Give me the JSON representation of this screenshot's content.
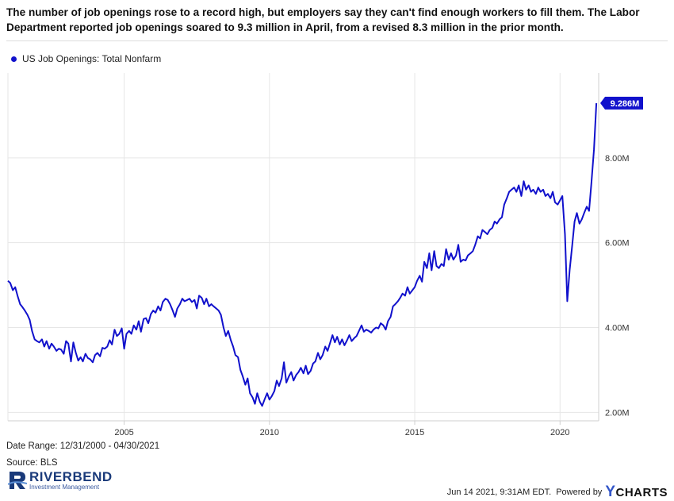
{
  "headline": "The number of job openings rose to a record high, but employers say they can't find enough workers to fill them.  The Labor Department reported job openings soared to 9.3 million in April, from a revised 8.3 million in the prior month.",
  "footer": {
    "date_range": "Date Range: 12/31/2000 - 04/30/2021",
    "source": "Source: BLS",
    "timestamp": "Jun 14 2021, 9:31AM EDT.",
    "powered_by": "Powered by",
    "ycharts_y": "Y",
    "ycharts_rest": "CHARTS",
    "logo_name": "RIVERBEND",
    "logo_sub": "Investment Management"
  },
  "colors": {
    "line": "#1111cc",
    "grid": "#e6e6e6",
    "label_bg": "#1111cc"
  },
  "chart_data": {
    "type": "line",
    "title": "",
    "xlabel": "",
    "ylabel": "",
    "series": [
      {
        "name": "US Job Openings: Total Nonfarm"
      }
    ],
    "last_value_label": "9.286M",
    "x_ticks": [
      "2005",
      "2010",
      "2015",
      "2020"
    ],
    "x_tick_values": [
      2005,
      2010,
      2015,
      2020
    ],
    "y_ticks": [
      "2.00M",
      "4.00M",
      "6.00M",
      "8.00M"
    ],
    "y_tick_values": [
      2,
      4,
      6,
      8
    ],
    "xlim": [
      2001.0,
      2021.33
    ],
    "ylim": [
      1.8,
      10.0
    ],
    "y_unit": "millions",
    "axis_side": "right",
    "grid": true,
    "points": [
      [
        2001.0,
        5.1
      ],
      [
        2001.08,
        5.05
      ],
      [
        2001.17,
        4.88
      ],
      [
        2001.25,
        4.95
      ],
      [
        2001.33,
        4.75
      ],
      [
        2001.42,
        4.55
      ],
      [
        2001.5,
        4.48
      ],
      [
        2001.58,
        4.4
      ],
      [
        2001.67,
        4.3
      ],
      [
        2001.75,
        4.18
      ],
      [
        2001.83,
        3.92
      ],
      [
        2001.92,
        3.72
      ],
      [
        2002.0,
        3.68
      ],
      [
        2002.08,
        3.65
      ],
      [
        2002.17,
        3.72
      ],
      [
        2002.25,
        3.55
      ],
      [
        2002.33,
        3.68
      ],
      [
        2002.42,
        3.5
      ],
      [
        2002.5,
        3.62
      ],
      [
        2002.58,
        3.55
      ],
      [
        2002.67,
        3.45
      ],
      [
        2002.75,
        3.5
      ],
      [
        2002.83,
        3.48
      ],
      [
        2002.92,
        3.38
      ],
      [
        2003.0,
        3.68
      ],
      [
        2003.08,
        3.62
      ],
      [
        2003.17,
        3.2
      ],
      [
        2003.25,
        3.65
      ],
      [
        2003.33,
        3.42
      ],
      [
        2003.42,
        3.22
      ],
      [
        2003.5,
        3.3
      ],
      [
        2003.58,
        3.2
      ],
      [
        2003.67,
        3.38
      ],
      [
        2003.75,
        3.28
      ],
      [
        2003.83,
        3.25
      ],
      [
        2003.92,
        3.18
      ],
      [
        2004.0,
        3.35
      ],
      [
        2004.08,
        3.4
      ],
      [
        2004.17,
        3.32
      ],
      [
        2004.25,
        3.52
      ],
      [
        2004.33,
        3.5
      ],
      [
        2004.42,
        3.55
      ],
      [
        2004.5,
        3.7
      ],
      [
        2004.58,
        3.6
      ],
      [
        2004.67,
        3.95
      ],
      [
        2004.75,
        3.8
      ],
      [
        2004.83,
        3.85
      ],
      [
        2004.92,
        3.98
      ],
      [
        2005.0,
        3.5
      ],
      [
        2005.08,
        3.85
      ],
      [
        2005.17,
        3.92
      ],
      [
        2005.25,
        3.85
      ],
      [
        2005.33,
        4.05
      ],
      [
        2005.42,
        3.95
      ],
      [
        2005.5,
        4.15
      ],
      [
        2005.58,
        3.9
      ],
      [
        2005.67,
        4.2
      ],
      [
        2005.75,
        4.22
      ],
      [
        2005.83,
        4.1
      ],
      [
        2005.92,
        4.32
      ],
      [
        2006.0,
        4.4
      ],
      [
        2006.08,
        4.35
      ],
      [
        2006.17,
        4.5
      ],
      [
        2006.25,
        4.4
      ],
      [
        2006.33,
        4.6
      ],
      [
        2006.42,
        4.68
      ],
      [
        2006.5,
        4.65
      ],
      [
        2006.58,
        4.55
      ],
      [
        2006.67,
        4.4
      ],
      [
        2006.75,
        4.25
      ],
      [
        2006.83,
        4.45
      ],
      [
        2006.92,
        4.55
      ],
      [
        2007.0,
        4.68
      ],
      [
        2007.08,
        4.62
      ],
      [
        2007.17,
        4.65
      ],
      [
        2007.25,
        4.68
      ],
      [
        2007.33,
        4.6
      ],
      [
        2007.42,
        4.65
      ],
      [
        2007.5,
        4.45
      ],
      [
        2007.58,
        4.75
      ],
      [
        2007.67,
        4.7
      ],
      [
        2007.75,
        4.55
      ],
      [
        2007.83,
        4.68
      ],
      [
        2007.92,
        4.5
      ],
      [
        2008.0,
        4.55
      ],
      [
        2008.08,
        4.5
      ],
      [
        2008.17,
        4.45
      ],
      [
        2008.25,
        4.4
      ],
      [
        2008.33,
        4.3
      ],
      [
        2008.42,
        4.0
      ],
      [
        2008.5,
        3.8
      ],
      [
        2008.58,
        3.92
      ],
      [
        2008.67,
        3.7
      ],
      [
        2008.75,
        3.55
      ],
      [
        2008.83,
        3.35
      ],
      [
        2008.92,
        3.3
      ],
      [
        2009.0,
        3.0
      ],
      [
        2009.08,
        2.85
      ],
      [
        2009.17,
        2.65
      ],
      [
        2009.25,
        2.8
      ],
      [
        2009.33,
        2.45
      ],
      [
        2009.42,
        2.35
      ],
      [
        2009.5,
        2.2
      ],
      [
        2009.58,
        2.45
      ],
      [
        2009.67,
        2.25
      ],
      [
        2009.75,
        2.15
      ],
      [
        2009.83,
        2.3
      ],
      [
        2009.92,
        2.45
      ],
      [
        2010.0,
        2.3
      ],
      [
        2010.08,
        2.38
      ],
      [
        2010.17,
        2.5
      ],
      [
        2010.25,
        2.75
      ],
      [
        2010.33,
        2.62
      ],
      [
        2010.42,
        2.8
      ],
      [
        2010.5,
        3.18
      ],
      [
        2010.58,
        2.7
      ],
      [
        2010.67,
        2.85
      ],
      [
        2010.75,
        2.95
      ],
      [
        2010.83,
        2.75
      ],
      [
        2010.92,
        2.88
      ],
      [
        2011.0,
        2.95
      ],
      [
        2011.08,
        3.05
      ],
      [
        2011.17,
        2.92
      ],
      [
        2011.25,
        3.1
      ],
      [
        2011.33,
        2.9
      ],
      [
        2011.42,
        2.98
      ],
      [
        2011.5,
        3.15
      ],
      [
        2011.58,
        3.2
      ],
      [
        2011.67,
        3.4
      ],
      [
        2011.75,
        3.25
      ],
      [
        2011.83,
        3.35
      ],
      [
        2011.92,
        3.55
      ],
      [
        2012.0,
        3.45
      ],
      [
        2012.08,
        3.62
      ],
      [
        2012.17,
        3.82
      ],
      [
        2012.25,
        3.65
      ],
      [
        2012.33,
        3.78
      ],
      [
        2012.42,
        3.6
      ],
      [
        2012.5,
        3.72
      ],
      [
        2012.58,
        3.58
      ],
      [
        2012.67,
        3.7
      ],
      [
        2012.75,
        3.82
      ],
      [
        2012.83,
        3.68
      ],
      [
        2012.92,
        3.75
      ],
      [
        2013.0,
        3.8
      ],
      [
        2013.08,
        3.92
      ],
      [
        2013.17,
        4.05
      ],
      [
        2013.25,
        3.9
      ],
      [
        2013.33,
        3.95
      ],
      [
        2013.42,
        3.92
      ],
      [
        2013.5,
        3.88
      ],
      [
        2013.58,
        3.95
      ],
      [
        2013.67,
        4.0
      ],
      [
        2013.75,
        3.98
      ],
      [
        2013.83,
        4.1
      ],
      [
        2013.92,
        4.05
      ],
      [
        2014.0,
        3.95
      ],
      [
        2014.08,
        4.15
      ],
      [
        2014.17,
        4.25
      ],
      [
        2014.25,
        4.5
      ],
      [
        2014.33,
        4.55
      ],
      [
        2014.42,
        4.62
      ],
      [
        2014.5,
        4.7
      ],
      [
        2014.58,
        4.8
      ],
      [
        2014.67,
        4.75
      ],
      [
        2014.75,
        4.95
      ],
      [
        2014.83,
        4.8
      ],
      [
        2014.92,
        4.88
      ],
      [
        2015.0,
        4.95
      ],
      [
        2015.08,
        5.1
      ],
      [
        2015.17,
        5.22
      ],
      [
        2015.25,
        5.08
      ],
      [
        2015.33,
        5.55
      ],
      [
        2015.42,
        5.4
      ],
      [
        2015.5,
        5.75
      ],
      [
        2015.58,
        5.35
      ],
      [
        2015.67,
        5.8
      ],
      [
        2015.75,
        5.45
      ],
      [
        2015.83,
        5.4
      ],
      [
        2015.92,
        5.5
      ],
      [
        2016.0,
        5.45
      ],
      [
        2016.08,
        5.85
      ],
      [
        2016.17,
        5.6
      ],
      [
        2016.25,
        5.75
      ],
      [
        2016.33,
        5.6
      ],
      [
        2016.42,
        5.7
      ],
      [
        2016.5,
        5.95
      ],
      [
        2016.58,
        5.55
      ],
      [
        2016.67,
        5.6
      ],
      [
        2016.75,
        5.58
      ],
      [
        2016.83,
        5.7
      ],
      [
        2016.92,
        5.75
      ],
      [
        2017.0,
        5.8
      ],
      [
        2017.08,
        5.95
      ],
      [
        2017.17,
        6.15
      ],
      [
        2017.25,
        6.1
      ],
      [
        2017.33,
        6.3
      ],
      [
        2017.42,
        6.25
      ],
      [
        2017.5,
        6.2
      ],
      [
        2017.58,
        6.3
      ],
      [
        2017.67,
        6.35
      ],
      [
        2017.75,
        6.5
      ],
      [
        2017.83,
        6.45
      ],
      [
        2017.92,
        6.55
      ],
      [
        2018.0,
        6.6
      ],
      [
        2018.08,
        6.9
      ],
      [
        2018.17,
        7.05
      ],
      [
        2018.25,
        7.2
      ],
      [
        2018.33,
        7.25
      ],
      [
        2018.42,
        7.3
      ],
      [
        2018.5,
        7.2
      ],
      [
        2018.58,
        7.35
      ],
      [
        2018.67,
        7.1
      ],
      [
        2018.75,
        7.45
      ],
      [
        2018.83,
        7.25
      ],
      [
        2018.92,
        7.35
      ],
      [
        2019.0,
        7.2
      ],
      [
        2019.08,
        7.25
      ],
      [
        2019.17,
        7.15
      ],
      [
        2019.25,
        7.3
      ],
      [
        2019.33,
        7.2
      ],
      [
        2019.42,
        7.25
      ],
      [
        2019.5,
        7.1
      ],
      [
        2019.58,
        7.15
      ],
      [
        2019.67,
        7.05
      ],
      [
        2019.75,
        7.2
      ],
      [
        2019.83,
        6.95
      ],
      [
        2019.92,
        6.9
      ],
      [
        2020.0,
        7.0
      ],
      [
        2020.08,
        7.1
      ],
      [
        2020.17,
        6.2
      ],
      [
        2020.25,
        4.62
      ],
      [
        2020.33,
        5.35
      ],
      [
        2020.42,
        5.95
      ],
      [
        2020.5,
        6.5
      ],
      [
        2020.58,
        6.7
      ],
      [
        2020.67,
        6.45
      ],
      [
        2020.75,
        6.55
      ],
      [
        2020.83,
        6.7
      ],
      [
        2020.92,
        6.85
      ],
      [
        2021.0,
        6.75
      ],
      [
        2021.08,
        7.4
      ],
      [
        2021.17,
        8.2
      ],
      [
        2021.25,
        9.29
      ]
    ]
  }
}
